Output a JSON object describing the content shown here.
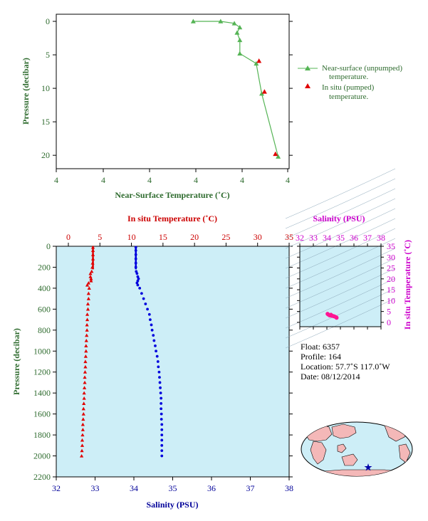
{
  "colors": {
    "green": "#55b455",
    "green_text": "#2e6b2e",
    "red": "#e00000",
    "red_text": "#cc0000",
    "blue": "#0000dd",
    "blue_text": "#000099",
    "magenta": "#cc00cc",
    "plot_bg": "#cdeef7"
  },
  "chart_data": [
    {
      "type": "line",
      "xlabel": "Near-Surface Temperature (˚C)",
      "ylabel": "Pressure (decibar)",
      "xticks": [
        "4",
        "4",
        "4",
        "4",
        "4",
        "4"
      ],
      "yticks": [
        "0",
        "5",
        "10",
        "15",
        "20"
      ],
      "ylim": [
        0,
        22
      ],
      "x_scale_note_positions_are_relative": true,
      "series": [
        {
          "name": "Near-surface (unpumped) temperature.",
          "legend_lines": [
            "Near-surface (unpumped)",
            "temperature."
          ],
          "marker": "triangle-line",
          "x": [
            3.975,
            3.976,
            3.9765,
            3.9767,
            3.9766,
            3.9767,
            3.9767,
            3.9773,
            3.9775,
            3.9781
          ],
          "y": [
            0.0,
            0.0,
            0.3,
            0.9,
            1.7,
            2.8,
            4.8,
            6.3,
            10.8,
            20.2
          ]
        },
        {
          "name": "In situ (pumped) temperature.",
          "legend_lines": [
            "In situ (pumped)",
            "temperature."
          ],
          "marker": "triangle",
          "x": [
            3.9774,
            3.9776,
            3.978
          ],
          "y": [
            5.9,
            10.5,
            19.8
          ]
        }
      ],
      "xlim_relative": [
        3.97,
        3.9785
      ]
    },
    {
      "type": "scatter",
      "top_xlabel": "In situ Temperature (˚C)",
      "bottom_xlabel": "Salinity (PSU)",
      "ylabel": "Pressure (decibar)",
      "top_xticks": [
        "0",
        "5",
        "10",
        "15",
        "20",
        "25",
        "30",
        "35"
      ],
      "bottom_xticks": [
        "32",
        "33",
        "34",
        "35",
        "36",
        "37",
        "38"
      ],
      "yticks": [
        "0",
        "200",
        "400",
        "600",
        "800",
        "1000",
        "1200",
        "1400",
        "1600",
        "1800",
        "2000",
        "2200"
      ],
      "temp_xlim": [
        -2,
        35
      ],
      "sal_xlim": [
        32,
        38
      ],
      "ylim": [
        0,
        2200
      ],
      "series": [
        {
          "name": "In situ Temperature",
          "pressure": [
            10,
            40,
            80,
            120,
            160,
            200,
            240,
            260,
            290,
            310,
            330,
            350,
            370,
            400,
            450,
            500,
            550,
            600,
            650,
            700,
            750,
            800,
            850,
            900,
            950,
            1000,
            1050,
            1100,
            1150,
            1200,
            1250,
            1300,
            1350,
            1400,
            1450,
            1500,
            1550,
            1600,
            1650,
            1700,
            1750,
            1800,
            1850,
            1900,
            1950,
            2000
          ],
          "values": [
            3.9,
            3.9,
            3.9,
            3.9,
            3.85,
            3.8,
            3.7,
            3.5,
            3.5,
            3.6,
            3.6,
            3.2,
            3.0,
            3.3,
            3.2,
            3.2,
            3.1,
            3.1,
            3.0,
            3.0,
            2.95,
            2.95,
            2.9,
            2.85,
            2.8,
            2.8,
            2.75,
            2.7,
            2.7,
            2.65,
            2.6,
            2.6,
            2.55,
            2.5,
            2.5,
            2.45,
            2.4,
            2.4,
            2.35,
            2.3,
            2.3,
            2.25,
            2.2,
            2.2,
            2.15,
            2.1
          ]
        },
        {
          "name": "Salinity",
          "pressure": [
            10,
            40,
            80,
            120,
            160,
            200,
            240,
            260,
            290,
            310,
            330,
            350,
            370,
            400,
            450,
            500,
            550,
            600,
            650,
            700,
            750,
            800,
            850,
            900,
            950,
            1000,
            1050,
            1100,
            1150,
            1200,
            1250,
            1300,
            1350,
            1400,
            1450,
            1500,
            1550,
            1600,
            1650,
            1700,
            1750,
            1800,
            1850,
            1900,
            1950,
            2000
          ],
          "values": [
            34.05,
            34.05,
            34.05,
            34.05,
            34.05,
            34.05,
            34.06,
            34.08,
            34.1,
            34.12,
            34.1,
            34.08,
            34.1,
            34.15,
            34.2,
            34.25,
            34.3,
            34.35,
            34.4,
            34.42,
            34.45,
            34.47,
            34.5,
            34.52,
            34.55,
            34.57,
            34.6,
            34.62,
            34.63,
            34.65,
            34.66,
            34.67,
            34.68,
            34.69,
            34.7,
            34.7,
            34.7,
            34.71,
            34.71,
            34.72,
            34.72,
            34.72,
            34.72,
            34.72,
            34.72,
            34.72
          ]
        }
      ]
    },
    {
      "type": "scatter",
      "top_xlabel": "Salinity (PSU)",
      "right_ylabel": "In situ Temperature (˚C)",
      "xticks": [
        "32",
        "33",
        "34",
        "35",
        "36",
        "37",
        "38"
      ],
      "yticks": [
        "0",
        "5",
        "10",
        "15",
        "20",
        "25",
        "30",
        "35"
      ],
      "xlim": [
        32,
        38
      ],
      "ylim": [
        -2,
        35
      ],
      "series": [
        {
          "name": "T-S",
          "sal": [
            34.05,
            34.1,
            34.2,
            34.3,
            34.4,
            34.5,
            34.6,
            34.7,
            34.72,
            34.5,
            34.3
          ],
          "temp": [
            3.9,
            3.6,
            3.2,
            3.1,
            3.0,
            2.8,
            2.6,
            2.3,
            2.1,
            2.85,
            3.5
          ]
        }
      ]
    }
  ],
  "info": {
    "float": "Float:  6357",
    "profile": "Profile:  164",
    "location": "Location:  57.7˚S  117.0˚W",
    "date": "Date:  08/12/2014"
  },
  "map": {
    "marker_label": "float-location-star"
  }
}
